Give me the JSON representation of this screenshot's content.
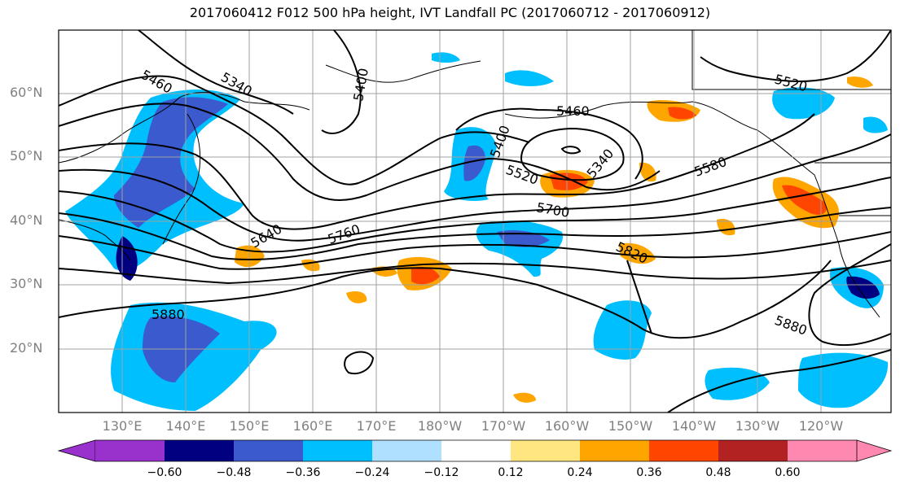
{
  "title": "2017060412 F012 500 hPa height, IVT Landfall PC (2017060712 - 2017060912)",
  "lat_labels": [
    "60°N",
    "50°N",
    "40°N",
    "30°N",
    "20°N"
  ],
  "lon_labels": [
    "130°E",
    "140°E",
    "150°E",
    "160°E",
    "170°E",
    "180°W",
    "170°W",
    "160°W",
    "150°W",
    "140°W",
    "130°W",
    "120°W"
  ],
  "contour_labels": [
    "5460",
    "5340",
    "5400",
    "5520",
    "5460",
    "5400",
    "5340",
    "5520",
    "5580",
    "5700",
    "5640",
    "5760",
    "5820",
    "5880",
    "5880"
  ],
  "colorbar": {
    "tick_labels": [
      "−0.60",
      "−0.48",
      "−0.36",
      "−0.24",
      "−0.12",
      "0.12",
      "0.24",
      "0.36",
      "0.48",
      "0.60"
    ],
    "colors": [
      "#9932cc",
      "#000080",
      "#3a5acd",
      "#00bfff",
      "#b0e0ff",
      "#ffffff",
      "#ffe680",
      "#ffa500",
      "#ff4500",
      "#b22222",
      "#ff88b0"
    ]
  },
  "legend_colors": {
    "contour": "#000000",
    "coast": "#000000",
    "grid": "#a0a0a0"
  }
}
